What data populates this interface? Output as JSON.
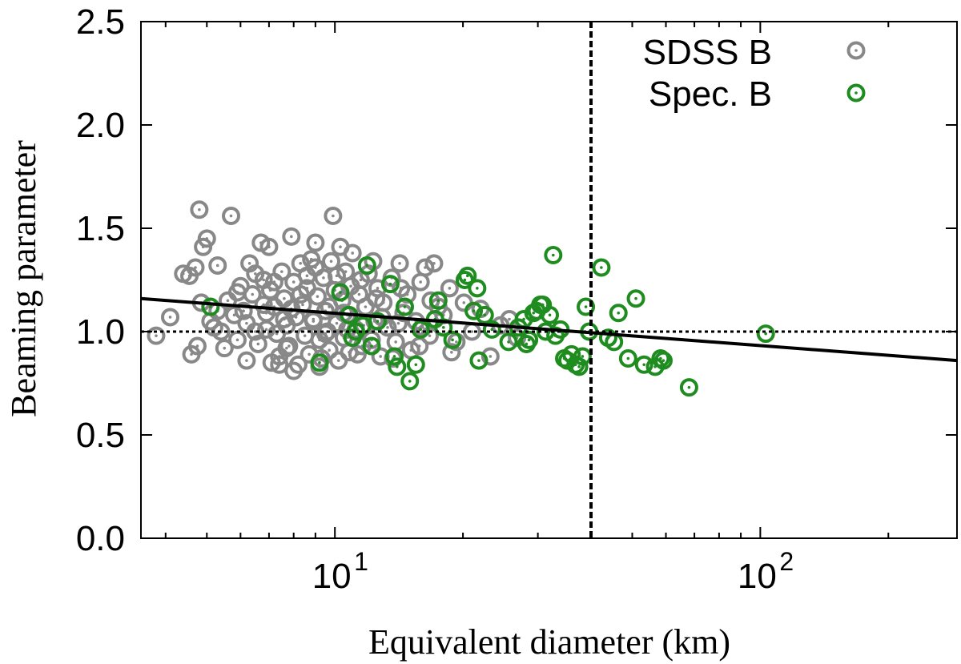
{
  "chart_data": {
    "type": "scatter",
    "xlabel": "Equivalent diameter (km)",
    "ylabel": "Beaming parameter",
    "xscale": "log",
    "xlim": [
      3.5,
      290
    ],
    "ylim": [
      0.0,
      2.5
    ],
    "y_ticks": [
      "0.0",
      "0.5",
      "1.0",
      "1.5",
      "2.0",
      "2.5"
    ],
    "x_ticks": [
      {
        "value": 10,
        "base": "10",
        "exp": "1"
      },
      {
        "value": 100,
        "base": "10",
        "exp": "2"
      }
    ],
    "legend_position": "top-right",
    "grid": false,
    "reference_lines": {
      "horizontal_y": 1.0,
      "vertical_x": 40
    },
    "fit_line": {
      "x": [
        3.5,
        290
      ],
      "y": [
        1.16,
        0.86
      ]
    },
    "series": [
      {
        "name": "SDSS B",
        "color": "#888888",
        "points": [
          [
            3.8,
            0.98
          ],
          [
            4.1,
            1.07
          ],
          [
            4.4,
            1.28
          ],
          [
            4.55,
            1.27
          ],
          [
            4.6,
            0.89
          ],
          [
            4.7,
            1.31
          ],
          [
            4.75,
            0.93
          ],
          [
            4.8,
            1.59
          ],
          [
            4.85,
            1.14
          ],
          [
            4.9,
            1.41
          ],
          [
            5.0,
            1.45
          ],
          [
            5.1,
            1.05
          ],
          [
            5.2,
            1.02
          ],
          [
            5.3,
            1.32
          ],
          [
            5.4,
            1.0
          ],
          [
            5.5,
            0.92
          ],
          [
            5.6,
            1.15
          ],
          [
            5.7,
            1.56
          ],
          [
            5.8,
            1.08
          ],
          [
            5.9,
            0.96
          ],
          [
            6.0,
            1.22
          ],
          [
            6.1,
            1.1
          ],
          [
            6.2,
            1.04
          ],
          [
            6.3,
            1.33
          ],
          [
            6.4,
            1.18
          ],
          [
            6.5,
            1.0
          ],
          [
            6.6,
            0.94
          ],
          [
            6.7,
            1.43
          ],
          [
            6.8,
            1.25
          ],
          [
            6.9,
            1.09
          ],
          [
            7.0,
            1.41
          ],
          [
            7.05,
            1.2
          ],
          [
            7.1,
            0.85
          ],
          [
            7.2,
            1.12
          ],
          [
            7.3,
            0.99
          ],
          [
            7.4,
            0.88
          ],
          [
            7.5,
            1.29
          ],
          [
            7.6,
            1.16
          ],
          [
            7.7,
            1.03
          ],
          [
            7.8,
            0.93
          ],
          [
            7.9,
            1.46
          ],
          [
            8.0,
            1.24
          ],
          [
            8.1,
            1.07
          ],
          [
            8.2,
            0.84
          ],
          [
            8.3,
            1.33
          ],
          [
            8.4,
            1.13
          ],
          [
            8.5,
            0.98
          ],
          [
            8.6,
            1.21
          ],
          [
            8.7,
            0.89
          ],
          [
            8.8,
            1.35
          ],
          [
            8.9,
            1.06
          ],
          [
            9.0,
            1.43
          ],
          [
            9.1,
            1.17
          ],
          [
            9.2,
            0.96
          ],
          [
            9.3,
            0.87
          ],
          [
            9.4,
            1.26
          ],
          [
            9.5,
            1.1
          ],
          [
            9.6,
            1.0
          ],
          [
            9.7,
            0.91
          ],
          [
            9.8,
            1.34
          ],
          [
            9.9,
            1.56
          ],
          [
            10.0,
            1.2
          ],
          [
            10.1,
            1.04
          ],
          [
            10.2,
            0.86
          ],
          [
            10.3,
            1.41
          ],
          [
            10.4,
            1.15
          ],
          [
            10.5,
            0.97
          ],
          [
            10.6,
            1.29
          ],
          [
            10.7,
            1.08
          ],
          [
            10.8,
            0.9
          ],
          [
            10.9,
            1.22
          ],
          [
            11.0,
            1.38
          ],
          [
            11.2,
            1.01
          ],
          [
            11.4,
            1.18
          ],
          [
            11.6,
            0.93
          ],
          [
            11.8,
            1.12
          ],
          [
            12.0,
            1.28
          ],
          [
            12.2,
            0.96
          ],
          [
            12.4,
            1.05
          ],
          [
            12.6,
            1.21
          ],
          [
            12.8,
            0.88
          ],
          [
            13.0,
            1.14
          ],
          [
            13.3,
            1.02
          ],
          [
            13.6,
            1.26
          ],
          [
            13.9,
            0.95
          ],
          [
            14.2,
            1.33
          ],
          [
            14.5,
            1.09
          ],
          [
            14.8,
            1.18
          ],
          [
            15.1,
            0.91
          ],
          [
            15.5,
            1.05
          ],
          [
            15.9,
            1.24
          ],
          [
            16.3,
            1.31
          ],
          [
            16.7,
            0.98
          ],
          [
            17.1,
            1.33
          ],
          [
            17.5,
            1.12
          ],
          [
            18.0,
            1.08
          ],
          [
            18.6,
            1.21
          ],
          [
            19.3,
            0.95
          ],
          [
            20.1,
            1.14
          ],
          [
            21.0,
            1.0
          ],
          [
            22.0,
            1.11
          ],
          [
            23.2,
            0.88
          ],
          [
            24.5,
            1.03
          ],
          [
            25.7,
            1.06
          ],
          [
            26.8,
            0.97
          ],
          [
            6.2,
            0.86
          ],
          [
            7.4,
            0.84
          ],
          [
            8.0,
            0.81
          ],
          [
            9.2,
            0.83
          ],
          [
            8.6,
            1.27
          ],
          [
            6.8,
            1.13
          ],
          [
            7.7,
            0.92
          ],
          [
            9.5,
            0.99
          ],
          [
            10.5,
            1.09
          ],
          [
            11.3,
            0.89
          ],
          [
            12.5,
            1.16
          ],
          [
            13.7,
            0.87
          ],
          [
            14.3,
            1.21
          ],
          [
            15.8,
            0.93
          ],
          [
            16.8,
            1.15
          ],
          [
            5.9,
            1.19
          ],
          [
            6.5,
            1.28
          ],
          [
            7.2,
            1.24
          ],
          [
            8.3,
            1.18
          ],
          [
            9.0,
            1.31
          ],
          [
            10.1,
            1.27
          ],
          [
            11.5,
            1.25
          ],
          [
            12.3,
            1.34
          ],
          [
            7.6,
            1.06
          ],
          [
            8.9,
            1.05
          ],
          [
            10.7,
            1.01
          ],
          [
            11.7,
            1.03
          ],
          [
            6.9,
            1.01
          ],
          [
            5.3,
            1.1
          ],
          [
            7.9,
            1.11
          ],
          [
            9.7,
            1.12
          ],
          [
            12.9,
            1.07
          ],
          [
            14.1,
            1.04
          ],
          [
            16.1,
            1.02
          ],
          [
            18.8,
            0.9
          ]
        ]
      },
      {
        "name": "Spec. B",
        "color": "#1e8c1e",
        "points": [
          [
            5.1,
            1.12
          ],
          [
            9.2,
            0.85
          ],
          [
            10.3,
            1.19
          ],
          [
            10.8,
            1.08
          ],
          [
            11.0,
            0.97
          ],
          [
            11.2,
            1.0
          ],
          [
            11.6,
            1.03
          ],
          [
            11.9,
            1.32
          ],
          [
            12.2,
            0.93
          ],
          [
            12.6,
            1.05
          ],
          [
            13.5,
            1.23
          ],
          [
            13.8,
            0.88
          ],
          [
            14.0,
            0.83
          ],
          [
            14.6,
            1.12
          ],
          [
            15.0,
            0.76
          ],
          [
            15.5,
            0.84
          ],
          [
            15.9,
            1.01
          ],
          [
            17.2,
            1.06
          ],
          [
            17.5,
            1.15
          ],
          [
            18.0,
            1.02
          ],
          [
            18.9,
            0.96
          ],
          [
            20.2,
            1.25
          ],
          [
            20.5,
            1.27
          ],
          [
            21.2,
            1.1
          ],
          [
            21.6,
            1.21
          ],
          [
            21.8,
            0.86
          ],
          [
            22.5,
            1.08
          ],
          [
            23.4,
            1.01
          ],
          [
            25.6,
            0.95
          ],
          [
            27.0,
            1.02
          ],
          [
            27.8,
            1.06
          ],
          [
            28.2,
            0.94
          ],
          [
            28.6,
            0.96
          ],
          [
            29.3,
            1.09
          ],
          [
            29.8,
            1.1
          ],
          [
            30.4,
            1.13
          ],
          [
            30.8,
            1.13
          ],
          [
            31.3,
            1.0
          ],
          [
            32.0,
            1.08
          ],
          [
            32.6,
            1.37
          ],
          [
            33.0,
            0.98
          ],
          [
            33.9,
            1.01
          ],
          [
            34.6,
            0.87
          ],
          [
            35.2,
            0.86
          ],
          [
            36.0,
            0.89
          ],
          [
            36.8,
            0.84
          ],
          [
            37.5,
            0.83
          ],
          [
            38.2,
            0.88
          ],
          [
            38.9,
            1.12
          ],
          [
            39.6,
            1.0
          ],
          [
            42.3,
            1.31
          ],
          [
            43.9,
            0.97
          ],
          [
            45.3,
            0.95
          ],
          [
            46.4,
            1.09
          ],
          [
            48.9,
            0.87
          ],
          [
            51.0,
            1.16
          ],
          [
            53.3,
            0.84
          ],
          [
            56.6,
            0.83
          ],
          [
            58.3,
            0.87
          ],
          [
            59.2,
            0.86
          ],
          [
            68.0,
            0.73
          ],
          [
            103.0,
            0.99
          ]
        ]
      }
    ]
  }
}
